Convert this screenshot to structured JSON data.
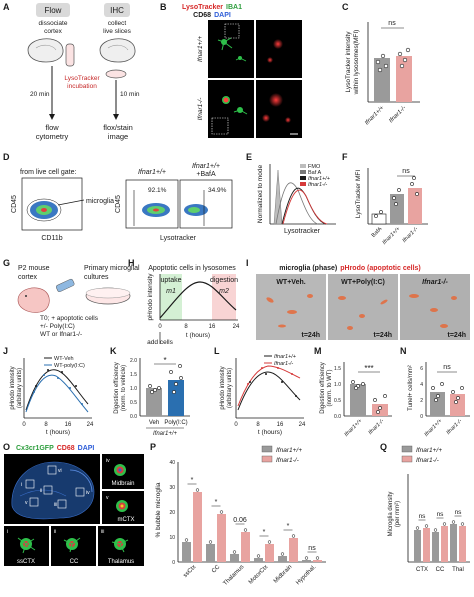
{
  "panels": {
    "A": "A",
    "B": "B",
    "C": "C",
    "D": "D",
    "E": "E",
    "F": "F",
    "G": "G",
    "H": "H",
    "I": "I",
    "J": "J",
    "K": "K",
    "L": "L",
    "M": "M",
    "N": "N",
    "O": "O",
    "P": "P",
    "Q": "Q"
  },
  "a": {
    "flow_badge": "Flow",
    "ihc_badge": "IHC",
    "dissociate": [
      "dissociate",
      "cortex"
    ],
    "collect": [
      "collect",
      "live slices"
    ],
    "incubation": [
      "LysoTracker",
      "incubation"
    ],
    "t20": "20 min",
    "t10": "10 min",
    "flow_out": [
      "flow",
      "cytometry"
    ],
    "stain_out": [
      "flox/stain",
      "image"
    ]
  },
  "b": {
    "hdr_lyso": "LysoTracker",
    "hdr_iba1": "IBA1",
    "hdr_cd68": "CD68",
    "hdr_dapi": "DAPI",
    "row1": "Ifnar1+/+",
    "row2": "Ifnar1-/-"
  },
  "c": {
    "ylabel": [
      "LysoTracker intensity",
      "within lysosomes(MFI)"
    ],
    "ns": "ns",
    "x1": "Ifnar1+/+",
    "x2": "Ifnar1-/-"
  },
  "d": {
    "gate_label": "from live cell gate:",
    "microglia": "microglia",
    "x_label": "CD11b",
    "y_label": "CD45",
    "x_label2": "Lysotracker",
    "y_label2": "CD45",
    "col1": "Ifnar1+/+",
    "col2": "Ifnar1+/+",
    "col2b": "+BafA",
    "pct1": "92.1%",
    "pct2": "34.9%"
  },
  "e": {
    "legend": [
      "FMO",
      "Baf A",
      "Ifnar1+/+",
      "Ifnar1-/-"
    ],
    "ylabel": "Normalized to mode",
    "xlabel": "Lysotracker"
  },
  "f": {
    "ylabel": "LysoTracker MFI",
    "ns": "ns",
    "x": [
      "BafA",
      "Ifnar1+/+",
      "Ifnar1-/-"
    ]
  },
  "g": {
    "mouse": [
      "P2 mouse",
      "cortex"
    ],
    "culture": [
      "Primary microglial",
      "cultures"
    ],
    "t0": [
      "T0; + apoptotic cells",
      "+/- Poly(I:C)",
      "WT or Ifnar1-/-"
    ]
  },
  "h": {
    "title": "Apoptotic cells in lysosomes",
    "uptake": "uptake",
    "digestion": "digestion",
    "m1": "m1",
    "m2": "m2",
    "ylabel": "pHrodo intensity",
    "xlabel": "t (hours)",
    "ticks": [
      "0",
      "8",
      "16",
      "24"
    ],
    "add": "add cells"
  },
  "i": {
    "title_a": "microglia (phase)",
    "title_b": "pHrodo (apoptotic cells)",
    "c1": "WT+Veh.",
    "c2": "WT+Poly(I:C)",
    "c3": "Ifnar1-/-",
    "stamp": "t=24h"
  },
  "j": {
    "legend": [
      "WT-Veh",
      "WT-poly(I:C)"
    ],
    "ylabel": [
      "pHrodo intensity",
      "(arbitrary units)"
    ],
    "xlabel": "t (hours)",
    "ticks": [
      "0",
      "8",
      "16",
      "24"
    ]
  },
  "k": {
    "ylabel": [
      "Digestion efficiency",
      "(norm. to vehicle)"
    ],
    "star": "*",
    "x": [
      "Veh",
      "Poly(I:C)"
    ],
    "geno": "Ifnar1+/+",
    "yticks": [
      "0.0",
      "0.5",
      "1.0",
      "1.5",
      "2.0"
    ]
  },
  "l": {
    "legend": [
      "Ifnar1+/+",
      "Ifnar1-/-"
    ],
    "ylabel": [
      "pHrodo intensity",
      "(arbitrary units)"
    ],
    "xlabel": "t (hours)",
    "ticks": [
      "0",
      "8",
      "16",
      "24"
    ]
  },
  "m": {
    "ylabel": [
      "Digestion efficiency",
      "(norm. to WT)"
    ],
    "stars": "***",
    "x": [
      "Ifnar1+/+",
      "Ifnar1-/-"
    ],
    "yticks": [
      "0.0",
      "0.5",
      "1.0",
      "1.5"
    ]
  },
  "n": {
    "ylabel": "Tunel+ cells/mm²",
    "ns": "ns",
    "x": [
      "Ifnar1+/+",
      "Ifnar1-/-"
    ],
    "yticks": [
      "0",
      "2",
      "4",
      "6"
    ]
  },
  "o": {
    "hdr_a": "Cx3cr1GFP",
    "hdr_b": "CD68",
    "hdr_c": "DAPI",
    "roman": [
      "i",
      "ii",
      "iii",
      "iv",
      "v",
      "vi"
    ],
    "insets": [
      "ssCTX",
      "CC",
      "Thalamus",
      "Midbrain",
      "mCTX"
    ]
  },
  "p": {
    "legend": [
      "Ifnar1+/+",
      "Ifnar1-/-"
    ],
    "ylabel": "% bubble microglia",
    "sig": [
      "*",
      "*",
      "0.06",
      "*",
      "*",
      "ns"
    ],
    "x": [
      "ssCtx",
      "CC",
      "Thalamus",
      "MotorCtx",
      "Midbrain",
      "Hypothal."
    ],
    "yticks": [
      "0",
      "10",
      "20",
      "30",
      "40"
    ]
  },
  "q": {
    "legend": [
      "Ifnar1+/+",
      "Ifnar1-/-"
    ],
    "ylabel": [
      "Microglia density",
      "(per mm²)"
    ],
    "sig": [
      "ns",
      "ns",
      "ns"
    ],
    "x": [
      "CTX",
      "CC",
      "Thal"
    ]
  },
  "colors": {
    "wt": "#9a9a9a",
    "ko": "#e8a3a0",
    "red": "#d63a3a",
    "blue": "#2a6fb0",
    "green": "#3cb34a",
    "dark": "#1a1a1a"
  }
}
